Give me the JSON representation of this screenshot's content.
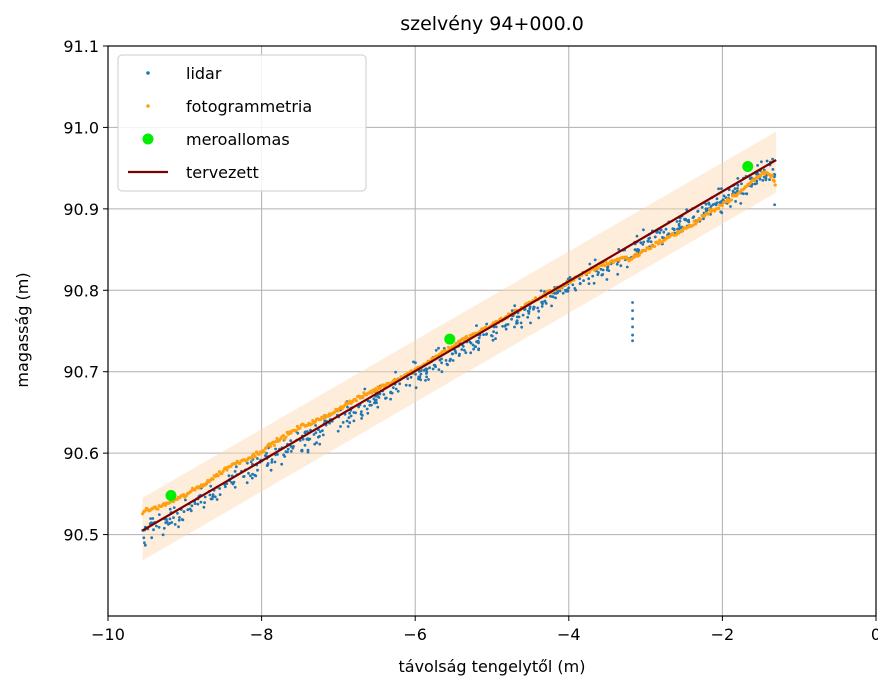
{
  "chart_data": {
    "type": "scatter",
    "title": "szelvény 94+000.0",
    "xlabel": "távolság tengelytől (m)",
    "ylabel": "magasság (m)",
    "xlim": [
      -10,
      0
    ],
    "ylim": [
      90.4,
      91.1
    ],
    "xticks": [
      -10,
      -8,
      -6,
      -4,
      -2,
      0
    ],
    "xtick_labels": [
      "−10",
      "−8",
      "−6",
      "−4",
      "−2",
      "0"
    ],
    "yticks": [
      90.5,
      90.6,
      90.7,
      90.8,
      90.9,
      91.0,
      91.1
    ],
    "ytick_labels": [
      "90.5",
      "90.6",
      "90.7",
      "90.8",
      "90.9",
      "91.0",
      "91.1"
    ],
    "grid": true,
    "legend_position": "top-left",
    "series": [
      {
        "name": "lidar",
        "kind": "points",
        "color": "#1f77b4",
        "model": {
          "x_start": -9.55,
          "x_end": -1.3,
          "y_start": 90.505,
          "y_end": 90.955,
          "spread": 0.018,
          "count": 700
        },
        "outliers": [
          {
            "x": -3.17,
            "y": 90.785
          },
          {
            "x": -3.17,
            "y": 90.775
          },
          {
            "x": -3.17,
            "y": 90.765
          },
          {
            "x": -3.17,
            "y": 90.755
          },
          {
            "x": -3.17,
            "y": 90.745
          },
          {
            "x": -3.17,
            "y": 90.738
          },
          {
            "x": -1.32,
            "y": 90.905
          }
        ]
      },
      {
        "name": "fotogrammetria",
        "kind": "points",
        "color": "#ff9f0e",
        "points": [
          [
            -9.55,
            90.528
          ],
          [
            -9.3,
            90.535
          ],
          [
            -9.0,
            90.548
          ],
          [
            -8.7,
            90.565
          ],
          [
            -8.4,
            90.585
          ],
          [
            -8.1,
            90.597
          ],
          [
            -7.8,
            90.615
          ],
          [
            -7.5,
            90.632
          ],
          [
            -7.2,
            90.643
          ],
          [
            -6.9,
            90.66
          ],
          [
            -6.6,
            90.674
          ],
          [
            -6.3,
            90.688
          ],
          [
            -6.0,
            90.702
          ],
          [
            -5.7,
            90.72
          ],
          [
            -5.4,
            90.738
          ],
          [
            -5.1,
            90.752
          ],
          [
            -4.8,
            90.768
          ],
          [
            -4.5,
            90.785
          ],
          [
            -4.2,
            90.8
          ],
          [
            -3.9,
            90.815
          ],
          [
            -3.6,
            90.83
          ],
          [
            -3.3,
            90.84
          ],
          [
            -3.2,
            90.838
          ],
          [
            -3.0,
            90.85
          ],
          [
            -2.7,
            90.865
          ],
          [
            -2.4,
            90.88
          ],
          [
            -2.1,
            90.9
          ],
          [
            -1.8,
            90.918
          ],
          [
            -1.6,
            90.935
          ],
          [
            -1.45,
            90.945
          ],
          [
            -1.35,
            90.94
          ],
          [
            -1.3,
            90.928
          ]
        ]
      },
      {
        "name": "meroallomas",
        "kind": "markers",
        "color": "#00ee00",
        "points": [
          [
            -9.18,
            90.548
          ],
          [
            -5.55,
            90.74
          ],
          [
            -1.67,
            90.952
          ]
        ]
      },
      {
        "name": "tervezett",
        "kind": "line",
        "color": "#7b0000",
        "points": [
          [
            -9.55,
            90.505
          ],
          [
            -1.3,
            90.96
          ]
        ]
      }
    ],
    "tolerance_band": {
      "color": "#ffd8b0",
      "lower": [
        [
          -9.55,
          90.468
        ],
        [
          -1.3,
          90.92
        ]
      ],
      "upper": [
        [
          -9.55,
          90.545
        ],
        [
          -1.3,
          90.995
        ]
      ]
    }
  }
}
